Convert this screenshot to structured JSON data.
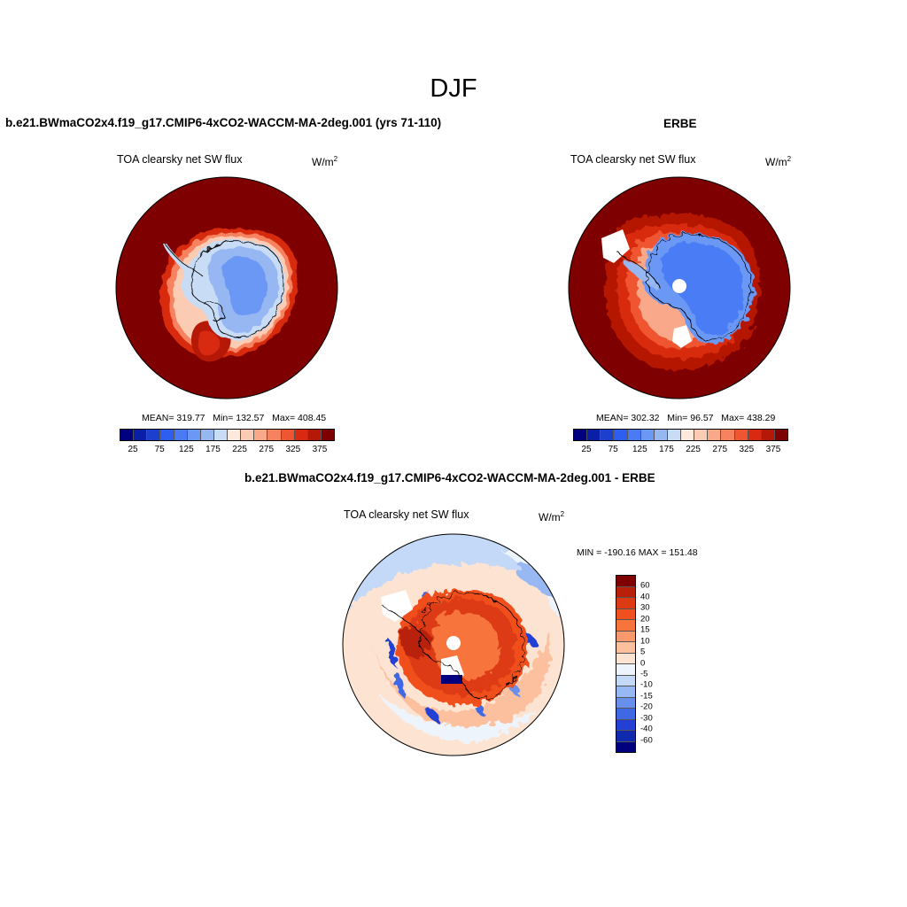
{
  "title": "DJF",
  "panels": [
    {
      "title": "b.e21.BWmaCO2x4.f19_g17.CMIP6-4xCO2-WACCM-MA-2deg.001 (yrs 71-110)",
      "variable": "TOA clearsky net SW flux",
      "units_base": "W/m",
      "units_exp": "2",
      "mean_label": "MEAN= 319.77",
      "min_label": "Min= 132.57",
      "max_label": "Max= 408.45"
    },
    {
      "title": "ERBE",
      "variable": "TOA clearsky net SW flux",
      "units_base": "W/m",
      "units_exp": "2",
      "mean_label": "MEAN= 302.32",
      "min_label": "Min=  96.57",
      "max_label": "Max= 438.29"
    }
  ],
  "diff_panel": {
    "title": "b.e21.BWmaCO2x4.f19_g17.CMIP6-4xCO2-WACCM-MA-2deg.001 - ERBE",
    "variable": "TOA clearsky net SW flux",
    "units_base": "W/m",
    "units_exp": "2",
    "minmax_label": "MIN = -190.16 MAX = 151.48"
  },
  "colorbar_top": {
    "colors": [
      "#00007f",
      "#0a1fa8",
      "#1c3fcc",
      "#2e5ef0",
      "#4a7bf5",
      "#6b98f4",
      "#97b7f2",
      "#c8dcf6",
      "#fde8dc",
      "#fbcbb4",
      "#f9a98a",
      "#f6825f",
      "#f05532",
      "#d82a10",
      "#b51806",
      "#7f0000"
    ],
    "tick_labels": [
      "25",
      "75",
      "125",
      "175",
      "225",
      "275",
      "325",
      "375"
    ]
  },
  "colorbar_diff": {
    "colors": [
      "#7f0000",
      "#b8200a",
      "#dc3a12",
      "#f04f1f",
      "#f7753c",
      "#fa9a6c",
      "#fcc09e",
      "#fde3d2",
      "#eef4fc",
      "#c4d9f7",
      "#97b8f2",
      "#6790ec",
      "#3f68e4",
      "#2440d4",
      "#102aae",
      "#00007f"
    ],
    "tick_labels": [
      "60",
      "40",
      "30",
      "20",
      "15",
      "10",
      "5",
      "0",
      "-5",
      "-10",
      "-15",
      "-20",
      "-30",
      "-40",
      "-60"
    ]
  }
}
